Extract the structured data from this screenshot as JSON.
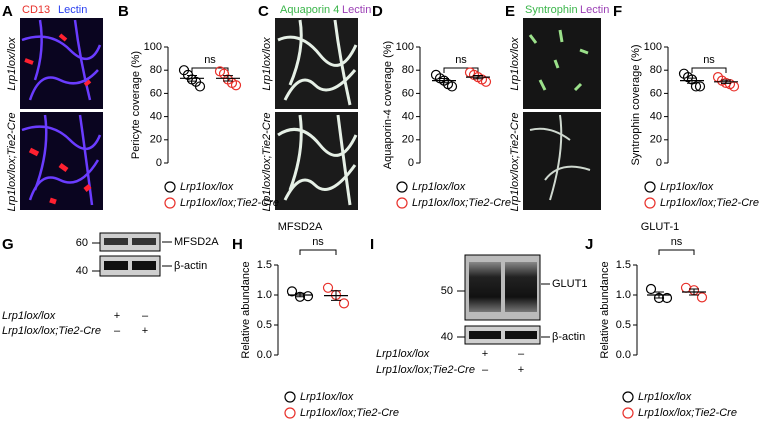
{
  "panels": {
    "A": {
      "label": "A",
      "stains": [
        "CD13",
        "Lectin"
      ],
      "rows": [
        "Lrp1lox/lox",
        "Lrp1lox/lox;Tie2-Cre"
      ]
    },
    "C": {
      "label": "C",
      "stains": [
        "Aquaporin 4",
        "Lectin"
      ],
      "rows": [
        "Lrp1lox/lox",
        "Lrp1lox/lox;Tie2-Cre"
      ]
    },
    "E": {
      "label": "E",
      "stains": [
        "Syntrophin",
        "Lectin"
      ],
      "rows": [
        "Lrp1lox/lox",
        "Lrp1lox/lox;Tie2-Cre"
      ]
    },
    "G": {
      "label": "G",
      "markers": [
        "60",
        "40"
      ],
      "bands": [
        "MFSD2A",
        "β-actin"
      ],
      "rows": [
        {
          "name": "Lrp1lox/lox",
          "signs": [
            "+",
            "–"
          ]
        },
        {
          "name": "Lrp1lox/lox;Tie2-Cre",
          "signs": [
            "–",
            "+"
          ]
        }
      ]
    },
    "I": {
      "label": "I",
      "markers": [
        "50",
        "40"
      ],
      "bands": [
        "GLUT1",
        "β-actin"
      ],
      "rows": [
        {
          "name": "Lrp1lox/lox",
          "signs": [
            "+",
            "–"
          ]
        },
        {
          "name": "Lrp1lox/lox;Tie2-Cre",
          "signs": [
            "–",
            "+"
          ]
        }
      ]
    }
  },
  "chart_data": [
    {
      "type": "dot",
      "panel": "B",
      "ylabel": "Pericyte coverage (%)",
      "annotation": "ns",
      "ylim": [
        0,
        100
      ],
      "yticks": [
        0,
        20,
        40,
        60,
        80,
        100
      ],
      "series": [
        {
          "name": "Lrp1lox/lox",
          "color": "#000000",
          "values": [
            80,
            76,
            72,
            70,
            66
          ],
          "mean": 73,
          "sem": 2.4
        },
        {
          "name": "Lrp1lox/lox;Tie2-Cre",
          "color": "#e8302a",
          "values": [
            79,
            77,
            72,
            69,
            67
          ],
          "mean": 73,
          "sem": 2.3
        }
      ]
    },
    {
      "type": "dot",
      "panel": "D",
      "ylabel": "Aquaporin-4 coverage (%)",
      "annotation": "ns",
      "ylim": [
        0,
        100
      ],
      "yticks": [
        0,
        20,
        40,
        60,
        80,
        100
      ],
      "series": [
        {
          "name": "Lrp1lox/lox",
          "color": "#000000",
          "values": [
            76,
            73,
            71,
            68,
            66
          ],
          "mean": 71,
          "sem": 1.8
        },
        {
          "name": "Lrp1lox/lox;Tie2-Cre",
          "color": "#e8302a",
          "values": [
            78,
            76,
            74,
            72,
            70
          ],
          "mean": 74,
          "sem": 1.4
        }
      ]
    },
    {
      "type": "dot",
      "panel": "F",
      "ylabel": "Syntrophin coverage (%)",
      "annotation": "ns",
      "ylim": [
        0,
        100
      ],
      "yticks": [
        0,
        20,
        40,
        60,
        80,
        100
      ],
      "series": [
        {
          "name": "Lrp1lox/lox",
          "color": "#000000",
          "values": [
            77,
            74,
            72,
            66,
            66
          ],
          "mean": 71,
          "sem": 2.2
        },
        {
          "name": "Lrp1lox/lox;Tie2-Cre",
          "color": "#e8302a",
          "values": [
            74,
            71,
            69,
            68,
            66
          ],
          "mean": 70,
          "sem": 1.4
        }
      ]
    },
    {
      "type": "dot",
      "panel": "H",
      "title": "MFSD2A",
      "ylabel": "Relative abundance",
      "annotation": "ns",
      "ylim": [
        0,
        1.5
      ],
      "yticks": [
        {
          "value": 0,
          "label": "0.0"
        },
        {
          "value": 0.5,
          "label": "0.5"
        },
        {
          "value": 1,
          "label": "1.0"
        },
        {
          "value": 1.5,
          "label": "1.5"
        }
      ],
      "series": [
        {
          "name": "Lrp1lox/lox",
          "color": "#000000",
          "values": [
            1.06,
            0.97,
            0.98
          ],
          "mean": 1.0,
          "sem": 0.03
        },
        {
          "name": "Lrp1lox/lox;Tie2-Cre",
          "color": "#e8302a",
          "values": [
            1.12,
            1.0,
            0.86
          ],
          "mean": 0.99,
          "sem": 0.08
        }
      ]
    },
    {
      "type": "dot",
      "panel": "J",
      "title": "GLUT-1",
      "ylabel": "Relative abundance",
      "annotation": "ns",
      "ylim": [
        0,
        1.5
      ],
      "yticks": [
        {
          "value": 0,
          "label": "0.0"
        },
        {
          "value": 0.5,
          "label": "0.5"
        },
        {
          "value": 1,
          "label": "1.0"
        },
        {
          "value": 1.5,
          "label": "1.5"
        }
      ],
      "series": [
        {
          "name": "Lrp1lox/lox",
          "color": "#000000",
          "values": [
            1.1,
            0.95,
            0.95
          ],
          "mean": 1.0,
          "sem": 0.05
        },
        {
          "name": "Lrp1lox/lox;Tie2-Cre",
          "color": "#e8302a",
          "values": [
            1.12,
            1.08,
            0.96
          ],
          "mean": 1.05,
          "sem": 0.05
        }
      ]
    }
  ]
}
